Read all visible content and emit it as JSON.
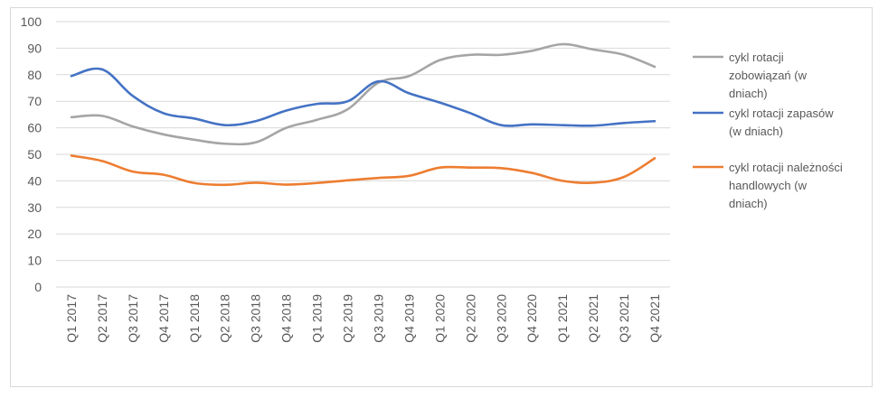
{
  "chart_data": {
    "type": "line",
    "categories": [
      "Q1 2017",
      "Q2 2017",
      "Q3 2017",
      "Q4 2017",
      "Q1 2018",
      "Q2 2018",
      "Q3 2018",
      "Q4 2018",
      "Q1 2019",
      "Q2 2019",
      "Q3 2019",
      "Q4 2019",
      "Q1 2020",
      "Q2 2020",
      "Q3 2020",
      "Q4 2020",
      "Q1 2021",
      "Q2 2021",
      "Q3 2021",
      "Q4 2021"
    ],
    "ylim": [
      0,
      100
    ],
    "ytick_step": 10,
    "grid": true,
    "legend_position": "right",
    "series": [
      {
        "name_lines": [
          "cykl rotacji",
          "zobowiązań (w",
          "dniach)"
        ],
        "color": "#a5a5a5",
        "values": [
          64,
          64.5,
          60.5,
          57.5,
          55.5,
          54,
          54.5,
          60,
          63,
          67,
          77,
          79.5,
          85.5,
          87.5,
          87.5,
          89,
          91.5,
          89.5,
          87.5,
          83
        ]
      },
      {
        "name_lines": [
          "cykl rotacji zapasów",
          "(w dniach)"
        ],
        "color": "#4472c4",
        "values": [
          79.5,
          82,
          72,
          65.5,
          63.5,
          61,
          62.5,
          66.5,
          69,
          70,
          77.5,
          73,
          69.5,
          65.5,
          61,
          61.3,
          61,
          60.8,
          61.8,
          62.5
        ]
      },
      {
        "name_lines": [
          "cykl rotacji należności",
          "handlowych (w",
          "dniach)"
        ],
        "color": "#ed7d31",
        "values": [
          49.5,
          47.5,
          43.5,
          42.3,
          39.2,
          38.5,
          39.3,
          38.6,
          39.2,
          40.2,
          41.1,
          41.9,
          45,
          45,
          44.8,
          43,
          40,
          39.3,
          41.5,
          48.5
        ]
      }
    ]
  }
}
